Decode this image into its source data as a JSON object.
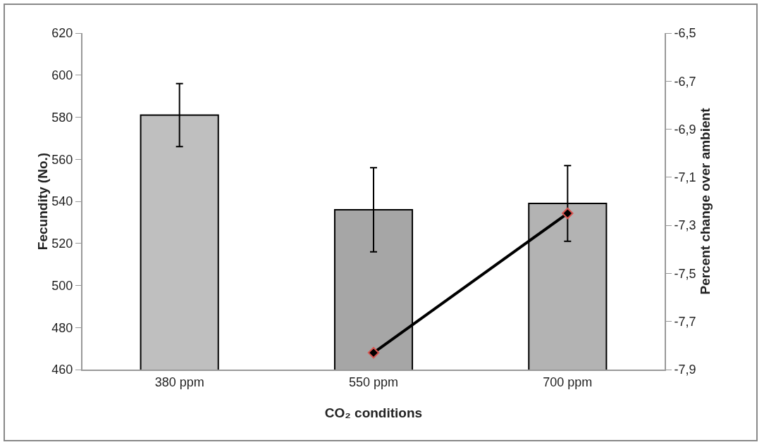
{
  "chart_data": {
    "type": "bar",
    "xlabel": "CO₂ conditions",
    "ylabel": "Fecundity (No.)",
    "y2label": "Percent change over ambient",
    "categories": [
      "380 ppm",
      "550 ppm",
      "700 ppm"
    ],
    "series": [
      {
        "colors": [
          "#bfbfbf",
          "#a6a6a6",
          "#b3b3b3"
        ],
        "values": [
          581,
          536,
          539
        ],
        "errors": [
          15,
          20,
          18
        ]
      },
      {
        "type": "line",
        "axis": "y2",
        "color": "#000000",
        "x": [
          "550 ppm",
          "700 ppm"
        ],
        "values": [
          -7.83,
          -7.25
        ]
      }
    ],
    "ylim": [
      460,
      620
    ],
    "yticks": [
      460,
      480,
      500,
      520,
      540,
      560,
      580,
      600,
      620
    ],
    "y2lim": [
      -7.9,
      -6.5
    ],
    "y2ticks": [
      {
        "value": -7.9,
        "label": "-7,9"
      },
      {
        "value": -7.7,
        "label": "-7,7"
      },
      {
        "value": -7.5,
        "label": "-7,5"
      },
      {
        "value": -7.3,
        "label": "-7,3"
      },
      {
        "value": -7.1,
        "label": "-7,1"
      },
      {
        "value": -6.9,
        "label": "-6,9"
      },
      {
        "value": -6.7,
        "label": "-6,7"
      },
      {
        "value": -6.5,
        "label": "-6,5"
      }
    ],
    "grid": false,
    "marker": "diamond",
    "line_style": "solid"
  }
}
